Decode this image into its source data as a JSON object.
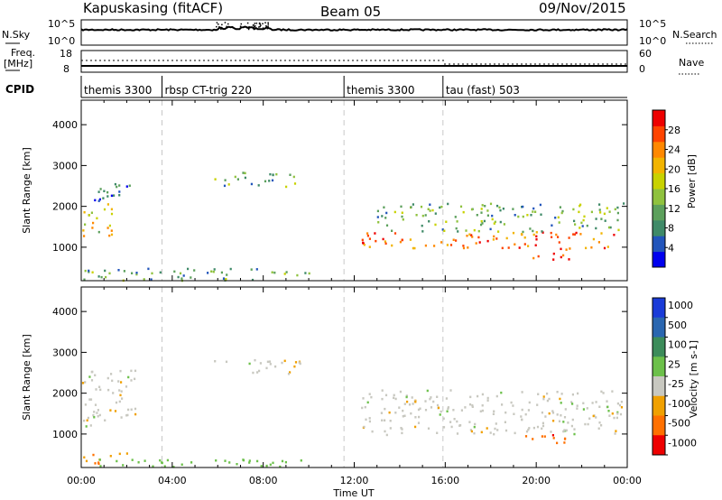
{
  "header": {
    "station": "Kapuskasing (fitACF)",
    "beam": "Beam 05",
    "date": "09/Nov/2015"
  },
  "nsky_panel": {
    "left_label": "N.Sky",
    "left_ticks": [
      "10^5",
      "10^0"
    ],
    "right_label": "N.Search",
    "right_ticks": [
      "10^5",
      "10^0"
    ]
  },
  "freq_panel": {
    "left_label_1": "Freq.",
    "left_label_2": "[MHz]",
    "left_ticks": [
      "18",
      "8"
    ],
    "right_label": "Nave",
    "right_ticks": [
      "60",
      "0"
    ]
  },
  "cpid": {
    "label": "CPID",
    "segments": [
      {
        "start": 0.0,
        "end": 3.55,
        "text": "themis 3300"
      },
      {
        "start": 3.55,
        "end": 11.55,
        "text": "rbsp CT-trig 220"
      },
      {
        "start": 11.55,
        "end": 15.9,
        "text": "themis 3300"
      },
      {
        "start": 15.9,
        "end": 24.0,
        "text": "tau (fast) 503"
      }
    ]
  },
  "axes": {
    "xlabel": "Time UT",
    "xticks": [
      "00:00",
      "04:00",
      "08:00",
      "12:00",
      "16:00",
      "20:00",
      "00:00"
    ],
    "ylabel": "Slant Range [km]",
    "yticks": [
      "1000",
      "2000",
      "3000",
      "4000"
    ]
  },
  "power_colorbar": {
    "label": "Power [dB]",
    "ticks": [
      "4",
      "8",
      "12",
      "16",
      "20",
      "24",
      "28"
    ],
    "colors": [
      "#0000ee",
      "#2255bb",
      "#3f8a68",
      "#5ca05c",
      "#8fc23e",
      "#c8d200",
      "#f2b400",
      "#ff8800",
      "#ff4400",
      "#ee0000"
    ]
  },
  "velocity_colorbar": {
    "label": "Velocity [m s-1]",
    "ticks": [
      "1000",
      "500",
      "100",
      "25",
      "-25",
      "-100",
      "-500",
      "-1000"
    ],
    "colors": [
      "#1a3bd8",
      "#2a66b0",
      "#3c8c5a",
      "#6cc04a",
      "#c8c8c0",
      "#f0a000",
      "#ff7000",
      "#ee0000"
    ]
  },
  "chart_data": [
    {
      "type": "heatmap",
      "title": "Power",
      "xlabel": "Time UT",
      "ylabel": "Slant Range [km]",
      "xlim": [
        0,
        24
      ],
      "ylim": [
        180,
        4600
      ],
      "colorbar": {
        "label": "Power [dB]",
        "range": [
          0,
          32
        ]
      },
      "regions": [
        {
          "t": [
            0.0,
            1.5
          ],
          "r": [
            1300,
            2100
          ],
          "value": 18
        },
        {
          "t": [
            0.3,
            2.4
          ],
          "r": [
            2100,
            2600
          ],
          "value": 8
        },
        {
          "t": [
            0.0,
            10.0
          ],
          "r": [
            200,
            500
          ],
          "value": 10
        },
        {
          "t": [
            5.8,
            9.6
          ],
          "r": [
            2500,
            2850
          ],
          "value": 12
        },
        {
          "t": [
            12.3,
            23.8
          ],
          "r": [
            1000,
            1400
          ],
          "value": 26
        },
        {
          "t": [
            13.0,
            23.8
          ],
          "r": [
            1400,
            2100
          ],
          "value": 12
        },
        {
          "t": [
            19.5,
            21.5
          ],
          "r": [
            700,
            1000
          ],
          "value": 28
        }
      ]
    },
    {
      "type": "heatmap",
      "title": "Velocity",
      "xlabel": "Time UT",
      "ylabel": "Slant Range [km]",
      "xlim": [
        0,
        24
      ],
      "ylim": [
        180,
        4600
      ],
      "colorbar": {
        "label": "Velocity [m s-1]",
        "range": [
          -1000,
          1000
        ]
      },
      "regions": [
        {
          "t": [
            0.0,
            2.4
          ],
          "r": [
            1200,
            2600
          ],
          "value": 0
        },
        {
          "t": [
            0.0,
            2.0
          ],
          "r": [
            300,
            600
          ],
          "value": -100
        },
        {
          "t": [
            0.0,
            10.0
          ],
          "r": [
            200,
            400
          ],
          "value": 60
        },
        {
          "t": [
            5.8,
            9.6
          ],
          "r": [
            2500,
            2850
          ],
          "value": 0
        },
        {
          "t": [
            12.3,
            23.8
          ],
          "r": [
            1000,
            2100
          ],
          "value": 0
        },
        {
          "t": [
            19.5,
            21.5
          ],
          "r": [
            700,
            1000
          ],
          "value": -400
        }
      ]
    }
  ]
}
